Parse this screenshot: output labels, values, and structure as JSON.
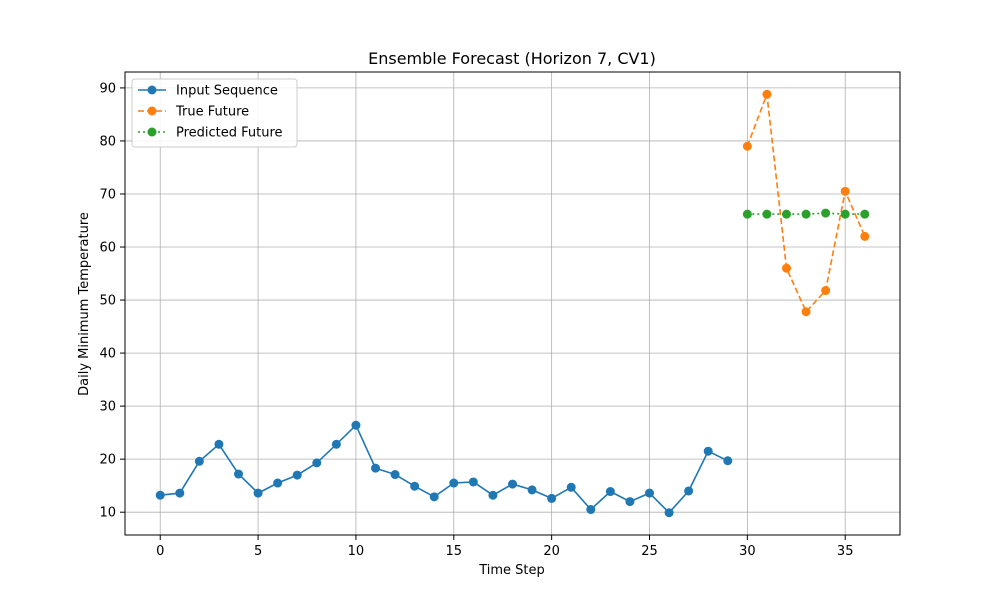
{
  "chart_data": {
    "type": "line",
    "title": "Ensemble Forecast (Horizon 7, CV1)",
    "xlabel": "Time Step",
    "ylabel": "Daily Minimum Temperature",
    "xlim": [
      -1.8,
      37.8
    ],
    "ylim": [
      5.7,
      93.0
    ],
    "xticks": [
      0,
      5,
      10,
      15,
      20,
      25,
      30,
      35
    ],
    "yticks": [
      10,
      20,
      30,
      40,
      50,
      60,
      70,
      80,
      90
    ],
    "grid": true,
    "legend_position": "top-left",
    "series": [
      {
        "name": "Input Sequence",
        "color": "#1f77b4",
        "linestyle": "solid",
        "marker": "circle",
        "x": [
          0,
          1,
          2,
          3,
          4,
          5,
          6,
          7,
          8,
          9,
          10,
          11,
          12,
          13,
          14,
          15,
          16,
          17,
          18,
          19,
          20,
          21,
          22,
          23,
          24,
          25,
          26,
          27,
          28,
          29
        ],
        "y": [
          13.2,
          13.6,
          19.6,
          22.8,
          17.2,
          13.6,
          15.5,
          17.0,
          19.3,
          22.8,
          26.4,
          18.3,
          17.1,
          14.9,
          12.9,
          15.5,
          15.7,
          13.2,
          15.3,
          14.2,
          12.6,
          14.7,
          10.5,
          13.9,
          12.0,
          13.6,
          9.9,
          14.0,
          21.5,
          19.7
        ]
      },
      {
        "name": "True Future",
        "color": "#ff7f0e",
        "linestyle": "dashed",
        "marker": "circle",
        "x": [
          30,
          31,
          32,
          33,
          34,
          35,
          36
        ],
        "y": [
          79.0,
          88.8,
          56.0,
          47.8,
          51.8,
          70.5,
          62.0
        ]
      },
      {
        "name": "Predicted Future",
        "color": "#2ca02c",
        "linestyle": "dotted",
        "marker": "circle",
        "x": [
          30,
          31,
          32,
          33,
          34,
          35,
          36
        ],
        "y": [
          66.2,
          66.2,
          66.2,
          66.2,
          66.4,
          66.2,
          66.2
        ]
      }
    ]
  }
}
